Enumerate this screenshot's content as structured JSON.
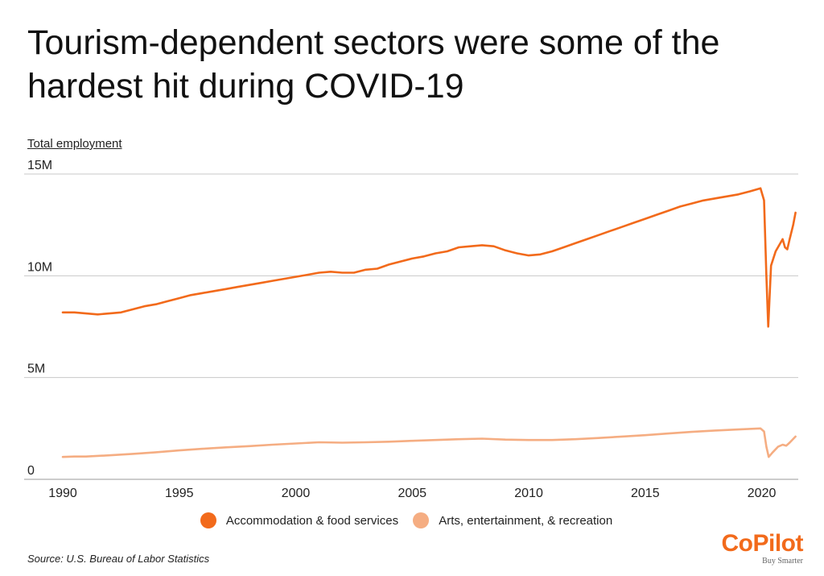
{
  "title": "Tourism-dependent sectors were some of the hardest hit during COVID-19",
  "source": "Source:  U.S. Bureau of Labor Statistics",
  "brand": {
    "name": "CoPilot",
    "tagline": "Buy Smarter",
    "color": "#f26a1b"
  },
  "chart_data": {
    "type": "line",
    "title": "Tourism-dependent sectors were some of the hardest hit during COVID-19",
    "ylabel": "Total employment",
    "xlabel": "",
    "xlim": [
      1990,
      2021.5
    ],
    "ylim": [
      0,
      15
    ],
    "y_unit": "million",
    "yticks": [
      {
        "value": 0,
        "label": "0"
      },
      {
        "value": 5,
        "label": "5M"
      },
      {
        "value": 10,
        "label": "10M"
      },
      {
        "value": 15,
        "label": "15M"
      }
    ],
    "xticks": [
      {
        "value": 1990,
        "label": "1990"
      },
      {
        "value": 1995,
        "label": "1995"
      },
      {
        "value": 2000,
        "label": "2000"
      },
      {
        "value": 2005,
        "label": "2005"
      },
      {
        "value": 2010,
        "label": "2010"
      },
      {
        "value": 2015,
        "label": "2015"
      },
      {
        "value": 2020,
        "label": "2020"
      }
    ],
    "legend_position": "bottom-center",
    "grid": true,
    "series": [
      {
        "name": "Accommodation & food services",
        "color": "#f26a1b",
        "points": [
          [
            1990,
            8.2
          ],
          [
            1990.5,
            8.2
          ],
          [
            1991,
            8.15
          ],
          [
            1991.5,
            8.1
          ],
          [
            1992,
            8.15
          ],
          [
            1992.5,
            8.2
          ],
          [
            1993,
            8.35
          ],
          [
            1993.5,
            8.5
          ],
          [
            1994,
            8.6
          ],
          [
            1994.5,
            8.75
          ],
          [
            1995,
            8.9
          ],
          [
            1995.5,
            9.05
          ],
          [
            1996,
            9.15
          ],
          [
            1996.5,
            9.25
          ],
          [
            1997,
            9.35
          ],
          [
            1997.5,
            9.45
          ],
          [
            1998,
            9.55
          ],
          [
            1998.5,
            9.65
          ],
          [
            1999,
            9.75
          ],
          [
            1999.5,
            9.85
          ],
          [
            2000,
            9.95
          ],
          [
            2000.5,
            10.05
          ],
          [
            2001,
            10.15
          ],
          [
            2001.5,
            10.2
          ],
          [
            2002,
            10.15
          ],
          [
            2002.5,
            10.15
          ],
          [
            2003,
            10.3
          ],
          [
            2003.5,
            10.35
          ],
          [
            2004,
            10.55
          ],
          [
            2004.5,
            10.7
          ],
          [
            2005,
            10.85
          ],
          [
            2005.5,
            10.95
          ],
          [
            2006,
            11.1
          ],
          [
            2006.5,
            11.2
          ],
          [
            2007,
            11.4
          ],
          [
            2007.5,
            11.45
          ],
          [
            2008,
            11.5
          ],
          [
            2008.5,
            11.45
          ],
          [
            2009,
            11.25
          ],
          [
            2009.5,
            11.1
          ],
          [
            2010,
            11.0
          ],
          [
            2010.5,
            11.05
          ],
          [
            2011,
            11.2
          ],
          [
            2011.5,
            11.4
          ],
          [
            2012,
            11.6
          ],
          [
            2012.5,
            11.8
          ],
          [
            2013,
            12.0
          ],
          [
            2013.5,
            12.2
          ],
          [
            2014,
            12.4
          ],
          [
            2014.5,
            12.6
          ],
          [
            2015,
            12.8
          ],
          [
            2015.5,
            13.0
          ],
          [
            2016,
            13.2
          ],
          [
            2016.5,
            13.4
          ],
          [
            2017,
            13.55
          ],
          [
            2017.5,
            13.7
          ],
          [
            2018,
            13.8
          ],
          [
            2018.5,
            13.9
          ],
          [
            2019,
            14.0
          ],
          [
            2019.5,
            14.15
          ],
          [
            2019.95,
            14.3
          ],
          [
            2020.1,
            13.7
          ],
          [
            2020.2,
            10.0
          ],
          [
            2020.28,
            7.5
          ],
          [
            2020.4,
            10.5
          ],
          [
            2020.6,
            11.2
          ],
          [
            2020.9,
            11.8
          ],
          [
            2021.0,
            11.4
          ],
          [
            2021.1,
            11.3
          ],
          [
            2021.2,
            11.8
          ],
          [
            2021.35,
            12.5
          ],
          [
            2021.45,
            13.1
          ]
        ]
      },
      {
        "name": "Arts, entertainment, & recreation",
        "color": "#f5ad82",
        "points": [
          [
            1990,
            1.1
          ],
          [
            1990.5,
            1.12
          ],
          [
            1991,
            1.12
          ],
          [
            1992,
            1.18
          ],
          [
            1993,
            1.25
          ],
          [
            1994,
            1.33
          ],
          [
            1995,
            1.42
          ],
          [
            1996,
            1.5
          ],
          [
            1997,
            1.57
          ],
          [
            1998,
            1.63
          ],
          [
            1999,
            1.7
          ],
          [
            2000,
            1.76
          ],
          [
            2001,
            1.82
          ],
          [
            2002,
            1.8
          ],
          [
            2003,
            1.82
          ],
          [
            2004,
            1.85
          ],
          [
            2005,
            1.89
          ],
          [
            2006,
            1.93
          ],
          [
            2007,
            1.97
          ],
          [
            2008,
            2.0
          ],
          [
            2009,
            1.95
          ],
          [
            2010,
            1.93
          ],
          [
            2011,
            1.93
          ],
          [
            2012,
            1.97
          ],
          [
            2013,
            2.03
          ],
          [
            2014,
            2.1
          ],
          [
            2015,
            2.17
          ],
          [
            2016,
            2.25
          ],
          [
            2017,
            2.33
          ],
          [
            2018,
            2.4
          ],
          [
            2019,
            2.45
          ],
          [
            2019.95,
            2.5
          ],
          [
            2020.1,
            2.35
          ],
          [
            2020.2,
            1.6
          ],
          [
            2020.3,
            1.1
          ],
          [
            2020.45,
            1.3
          ],
          [
            2020.7,
            1.6
          ],
          [
            2020.9,
            1.7
          ],
          [
            2021.05,
            1.65
          ],
          [
            2021.2,
            1.8
          ],
          [
            2021.45,
            2.1
          ]
        ]
      }
    ]
  }
}
